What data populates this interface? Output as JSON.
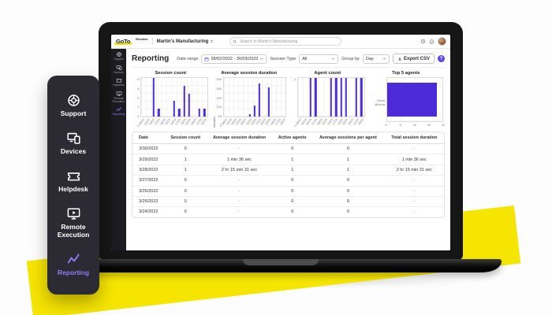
{
  "brand": {
    "logo_text": "GoTo",
    "product_text": "Resolve",
    "purple": "#4e2bd9",
    "accent_purple": "#5b43ee",
    "yellow": "#f6e500"
  },
  "dock": {
    "items": [
      {
        "label": "Support",
        "icon": "lifebuoy",
        "active": false
      },
      {
        "label": "Devices",
        "icon": "devices",
        "active": false
      },
      {
        "label": "Helpdesk",
        "icon": "ticket",
        "active": false
      },
      {
        "label": "Remote Execution",
        "icon": "remote",
        "active": false
      },
      {
        "label": "Reporting",
        "icon": "chart-line",
        "active": true
      }
    ]
  },
  "screen": {
    "topbar": {
      "company": "Martin's Manufacturing",
      "search_placeholder": "Search in Martin's Manufacturing"
    },
    "nav_items": [
      {
        "label": "Support",
        "icon": "lifebuoy",
        "active": false
      },
      {
        "label": "Devices",
        "icon": "devices",
        "active": false
      },
      {
        "label": "Helpdesk",
        "icon": "ticket",
        "active": false
      },
      {
        "label": "Remote Execution",
        "icon": "remote",
        "active": false
      },
      {
        "label": "Reporting",
        "icon": "chart-line",
        "active": true
      }
    ],
    "toolbar": {
      "title": "Reporting",
      "date_range_label": "Date range",
      "date_range_value": "28/02/2022 - 30/03/2022",
      "session_type_label": "Session Type",
      "session_type_value": "All",
      "group_by_label": "Group by",
      "group_by_value": "Day",
      "export_label": "Export CSV",
      "info_glyph": "?"
    },
    "table": {
      "columns": [
        "Date",
        "Session count",
        "Average session duration",
        "Active agents",
        "Average sessions per agent",
        "Total session duration"
      ],
      "rows": [
        [
          "3/30/2022",
          "0",
          "-",
          "0",
          "0",
          "-"
        ],
        [
          "3/29/2022",
          "1",
          "1 min 36 sec",
          "1",
          "1",
          "1 min 36 sec"
        ],
        [
          "3/28/2022",
          "1",
          "2 hr 15 min 31 sec",
          "1",
          "1",
          "2 hr 15 min 31 sec"
        ],
        [
          "3/27/2022",
          "0",
          "-",
          "0",
          "0",
          "-"
        ],
        [
          "3/26/2022",
          "0",
          "-",
          "0",
          "0",
          "-"
        ],
        [
          "3/25/2022",
          "0",
          "-",
          "0",
          "0",
          "-"
        ],
        [
          "3/24/2022",
          "0",
          "-",
          "0",
          "0",
          "-"
        ]
      ]
    }
  },
  "chart_data": [
    {
      "type": "bar",
      "title": "Session count",
      "categories": [
        "28/02",
        "02/03",
        "04/03",
        "07/03",
        "09/03",
        "12/03",
        "14/03",
        "17/03",
        "19/03",
        "22/03",
        "24/03",
        "27/03",
        "29/03"
      ],
      "values": [
        0,
        0,
        5,
        1,
        0,
        0,
        2,
        1,
        4,
        3,
        0,
        1,
        1
      ],
      "yticks": [
        0,
        1,
        2,
        3,
        4,
        5
      ],
      "ylim": [
        0,
        5
      ],
      "bar_color": "#4e2bd9",
      "grid": true
    },
    {
      "type": "bar",
      "title": "Average session duration",
      "ylabel": "minutes",
      "categories": [
        "28/02",
        "02/03",
        "04/03",
        "07/03",
        "09/03",
        "12/03",
        "14/03",
        "17/03",
        "19/03",
        "22/03",
        "24/03",
        "27/03",
        "29/03"
      ],
      "values": [
        0,
        0,
        0,
        0,
        0,
        15,
        70,
        215,
        0,
        190,
        0,
        0,
        0
      ],
      "yticks": [
        0,
        50,
        100,
        150,
        200,
        250
      ],
      "ylim": [
        0,
        250
      ],
      "bar_color": "#4e2bd9",
      "grid": true
    },
    {
      "type": "bar",
      "title": "Agent count",
      "categories": [
        "28/02",
        "02/03",
        "04/03",
        "07/03",
        "09/03",
        "12/03",
        "14/03",
        "17/03",
        "19/03",
        "22/03",
        "24/03",
        "27/03",
        "29/03"
      ],
      "values": [
        0,
        0,
        1,
        1,
        0,
        0,
        1,
        1,
        1,
        1,
        0,
        1,
        1
      ],
      "yticks": [
        0,
        1
      ],
      "ylim": [
        0,
        1
      ],
      "bar_color": "#4e2bd9",
      "grid": true
    },
    {
      "type": "hbar",
      "title": "Top 5 agents",
      "categories": [
        "David Blecha"
      ],
      "values": [
        18
      ],
      "xticks": [
        0,
        5,
        10,
        15,
        20
      ],
      "xlim": [
        0,
        20
      ],
      "bar_color": "#4e2bd9",
      "grid": true
    }
  ]
}
